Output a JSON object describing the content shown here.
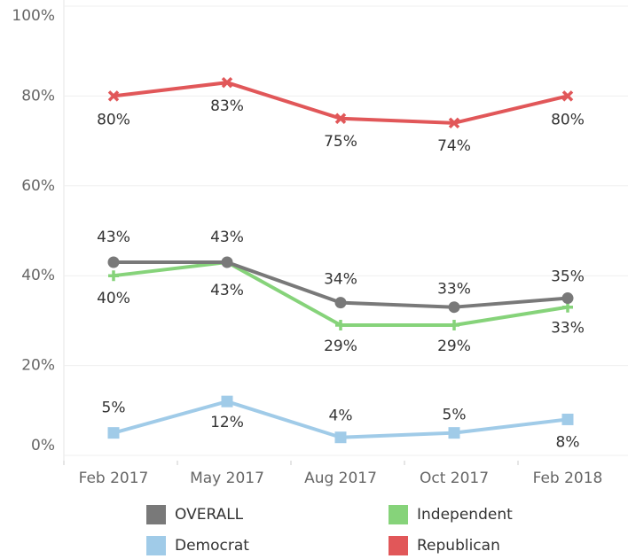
{
  "chart_data": {
    "type": "line",
    "categories": [
      "Feb 2017",
      "May 2017",
      "Aug 2017",
      "Oct 2017",
      "Feb 2018"
    ],
    "series": [
      {
        "name": "OVERALL",
        "color": "#797979",
        "marker": "circle",
        "values": [
          43,
          43,
          34,
          33,
          35
        ],
        "value_labels": [
          "43%",
          "43%",
          "34%",
          "33%",
          "35%"
        ]
      },
      {
        "name": "Independent",
        "color": "#86d37a",
        "marker": "plus",
        "values": [
          40,
          43,
          29,
          29,
          33
        ],
        "value_labels": [
          "40%",
          "43%",
          "29%",
          "29%",
          "33%"
        ]
      },
      {
        "name": "Democrat",
        "color": "#a0cbe8",
        "marker": "square",
        "values": [
          5,
          12,
          4,
          5,
          8
        ],
        "value_labels": [
          "5%",
          "12%",
          "4%",
          "5%",
          "8%"
        ]
      },
      {
        "name": "Republican",
        "color": "#e15759",
        "marker": "cross",
        "values": [
          80,
          83,
          75,
          74,
          80
        ],
        "value_labels": [
          "80%",
          "83%",
          "75%",
          "74%",
          "80%"
        ]
      }
    ],
    "ylim": [
      0,
      100
    ],
    "yticks": [
      {
        "value": 0,
        "label": "0%"
      },
      {
        "value": 20,
        "label": "20%"
      },
      {
        "value": 40,
        "label": "40%"
      },
      {
        "value": 60,
        "label": "60%"
      },
      {
        "value": 80,
        "label": "80%"
      },
      {
        "value": 100,
        "label": "100%"
      }
    ],
    "grid": true,
    "legend": "bottom"
  }
}
